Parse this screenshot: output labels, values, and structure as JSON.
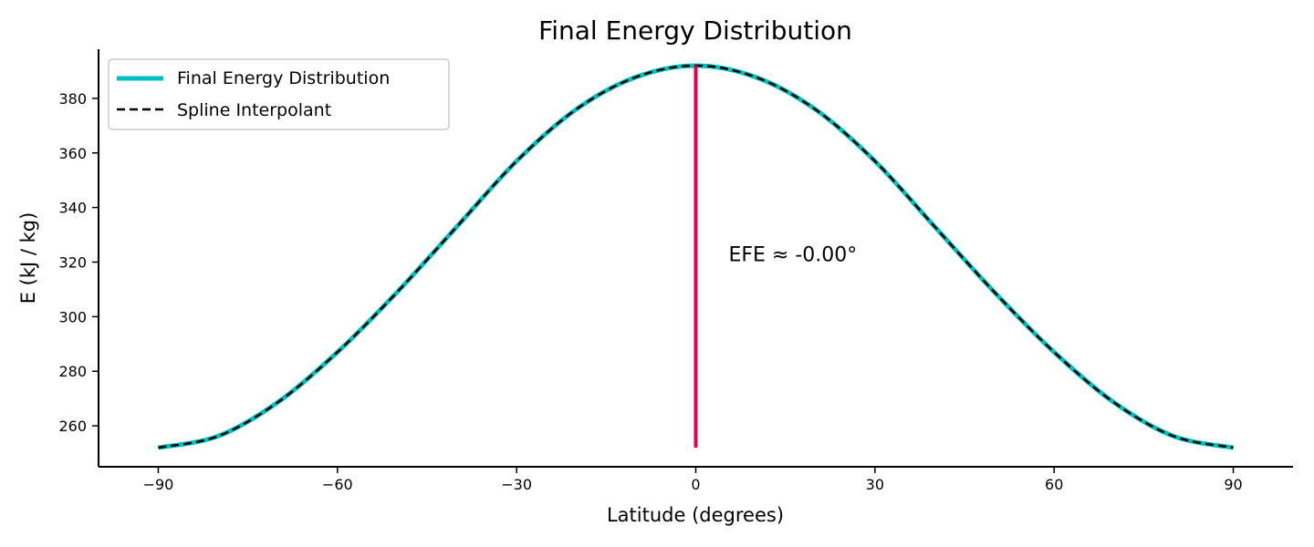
{
  "chart_data": {
    "type": "line",
    "title": "Final Energy Distribution",
    "xlabel": "Latitude (degrees)",
    "ylabel": "E (kJ / kg)",
    "xlim": [
      -100,
      100
    ],
    "ylim": [
      245,
      398
    ],
    "x_ticks": [
      -90,
      -60,
      -30,
      0,
      30,
      60,
      90
    ],
    "x_tick_labels": [
      "−90",
      "−60",
      "−30",
      "0",
      "30",
      "60",
      "90"
    ],
    "y_ticks": [
      260,
      280,
      300,
      320,
      340,
      360,
      380
    ],
    "y_tick_labels": [
      "260",
      "280",
      "300",
      "320",
      "340",
      "360",
      "380"
    ],
    "grid": false,
    "legend_position": "top-left",
    "series": [
      {
        "name": "Final Energy Distribution",
        "color": "#00bfbf",
        "style": "solid",
        "x": [
          -90,
          -80,
          -70,
          -60,
          -50,
          -40,
          -30,
          -20,
          -10,
          0,
          10,
          20,
          30,
          40,
          50,
          60,
          70,
          80,
          90
        ],
        "y": [
          252,
          256.2,
          268.6,
          287,
          309,
          333,
          357,
          376,
          387.8,
          392,
          387.8,
          376,
          357,
          333,
          309,
          287,
          268.6,
          256.2,
          252
        ]
      },
      {
        "name": "Spline Interpolant",
        "color": "#000000",
        "style": "dashed",
        "x": [
          -90,
          -80,
          -70,
          -60,
          -50,
          -40,
          -30,
          -20,
          -10,
          0,
          10,
          20,
          30,
          40,
          50,
          60,
          70,
          80,
          90
        ],
        "y": [
          252,
          256.2,
          268.6,
          287,
          309,
          333,
          357,
          376,
          387.8,
          392,
          387.8,
          376,
          357,
          333,
          309,
          287,
          268.6,
          256.2,
          252
        ]
      }
    ],
    "efe_line": {
      "x": 0,
      "y_from": 252,
      "y_to": 392,
      "color": "#e6004c"
    },
    "annotation": {
      "text": "EFE ≈ -0.00°",
      "x": 5.5,
      "y": 323
    }
  }
}
